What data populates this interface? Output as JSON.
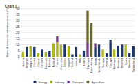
{
  "chart_data": {
    "type": "bar",
    "title": "Chart 1",
    "y_label": "Share of emissions in total emissions (%)",
    "categories": [
      "Austria",
      "Belgium",
      "Bulgaria",
      "Croatia",
      "Cyprus",
      "Czechia",
      "Denmark",
      "Estonia",
      "Finland",
      "France",
      "Germany",
      "Greece",
      "Hungary",
      "Iceland",
      "Ireland",
      "Italy",
      "Latvia",
      "Lithuania",
      "Luxembourg",
      "Malta",
      "Netherlands",
      "Norway",
      "Poland",
      "Portugal",
      "Romania",
      "Slovakia",
      "Slovenia",
      "Spain",
      "Sweden",
      "Switzerland"
    ],
    "series": [
      {
        "name": "Energy",
        "color": "#1b3668",
        "values": [
          0,
          8,
          0,
          8,
          0,
          6,
          0,
          5,
          0,
          0,
          0,
          10,
          0,
          2,
          8,
          0,
          5,
          0,
          0,
          8,
          10,
          0,
          3,
          14,
          0,
          9,
          10,
          0,
          3,
          9
        ]
      },
      {
        "name": "Industry",
        "color": "#a9b51b",
        "values": [
          4,
          0,
          9,
          0,
          3,
          0,
          4,
          0,
          11,
          12,
          10,
          0,
          9,
          0,
          0,
          2,
          0,
          0,
          0,
          0,
          0,
          6,
          0,
          0,
          6,
          0,
          0,
          10,
          0,
          0
        ]
      },
      {
        "name": "Transport",
        "color": "#7b3a8f",
        "values": [
          0,
          0,
          0,
          0,
          0,
          0,
          0,
          0,
          0,
          5,
          0,
          0,
          0,
          0,
          0,
          0,
          0,
          12,
          0,
          3,
          0,
          0,
          0,
          0,
          0,
          0,
          0,
          0,
          0,
          0
        ]
      },
      {
        "name": "Agriculture",
        "color": "#6b6a1f",
        "values": [
          0,
          0,
          0,
          0,
          0,
          0,
          0,
          0,
          0,
          0,
          0,
          0,
          0,
          0,
          0,
          0,
          0,
          26,
          28,
          0,
          0,
          0,
          0,
          0,
          0,
          0,
          0,
          0,
          0,
          0
        ]
      }
    ],
    "stacked": true,
    "ylim": [
      0,
      40
    ],
    "yticks": [
      0,
      5,
      10,
      15,
      20,
      25,
      30,
      35,
      40
    ],
    "grid": true,
    "legend": "bottom"
  }
}
